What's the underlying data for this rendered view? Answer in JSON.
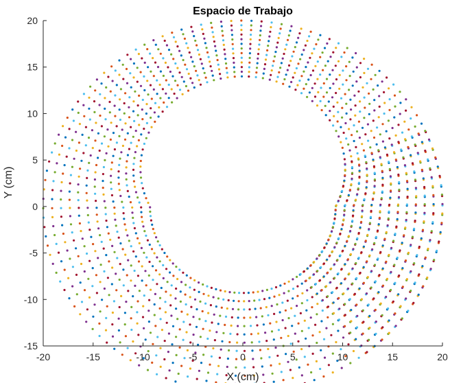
{
  "chart_data": {
    "type": "scatter",
    "title": "Espacio de Trabajo",
    "xlabel": "X (cm)",
    "ylabel": "Y (cm)",
    "xlim": [
      -20,
      20
    ],
    "ylim": [
      -15,
      20
    ],
    "xticks": [
      "-20",
      "-15",
      "-10",
      "-5",
      "0",
      "5",
      "10",
      "15",
      "20"
    ],
    "yticks": [
      "-15",
      "-10",
      "-5",
      "0",
      "5",
      "10",
      "15",
      "20"
    ],
    "grid": false,
    "legend": "none",
    "workspace": {
      "outer_radius": 20,
      "inner_radius_left": 9.3,
      "inner_radius_top": 14.0,
      "inner_center_x": 0,
      "inner_center_y": 0,
      "start_angle_deg": -128,
      "end_angle_deg": -52,
      "endpoints": [
        {
          "x": -9.0,
          "y": -11.0
        },
        {
          "x": 9.0,
          "y": -11.0
        }
      ]
    },
    "point_colors": [
      "#0072BD",
      "#D95319",
      "#EDB120",
      "#7E2F8E",
      "#77AC30",
      "#4DBEEE",
      "#A2142F"
    ]
  }
}
